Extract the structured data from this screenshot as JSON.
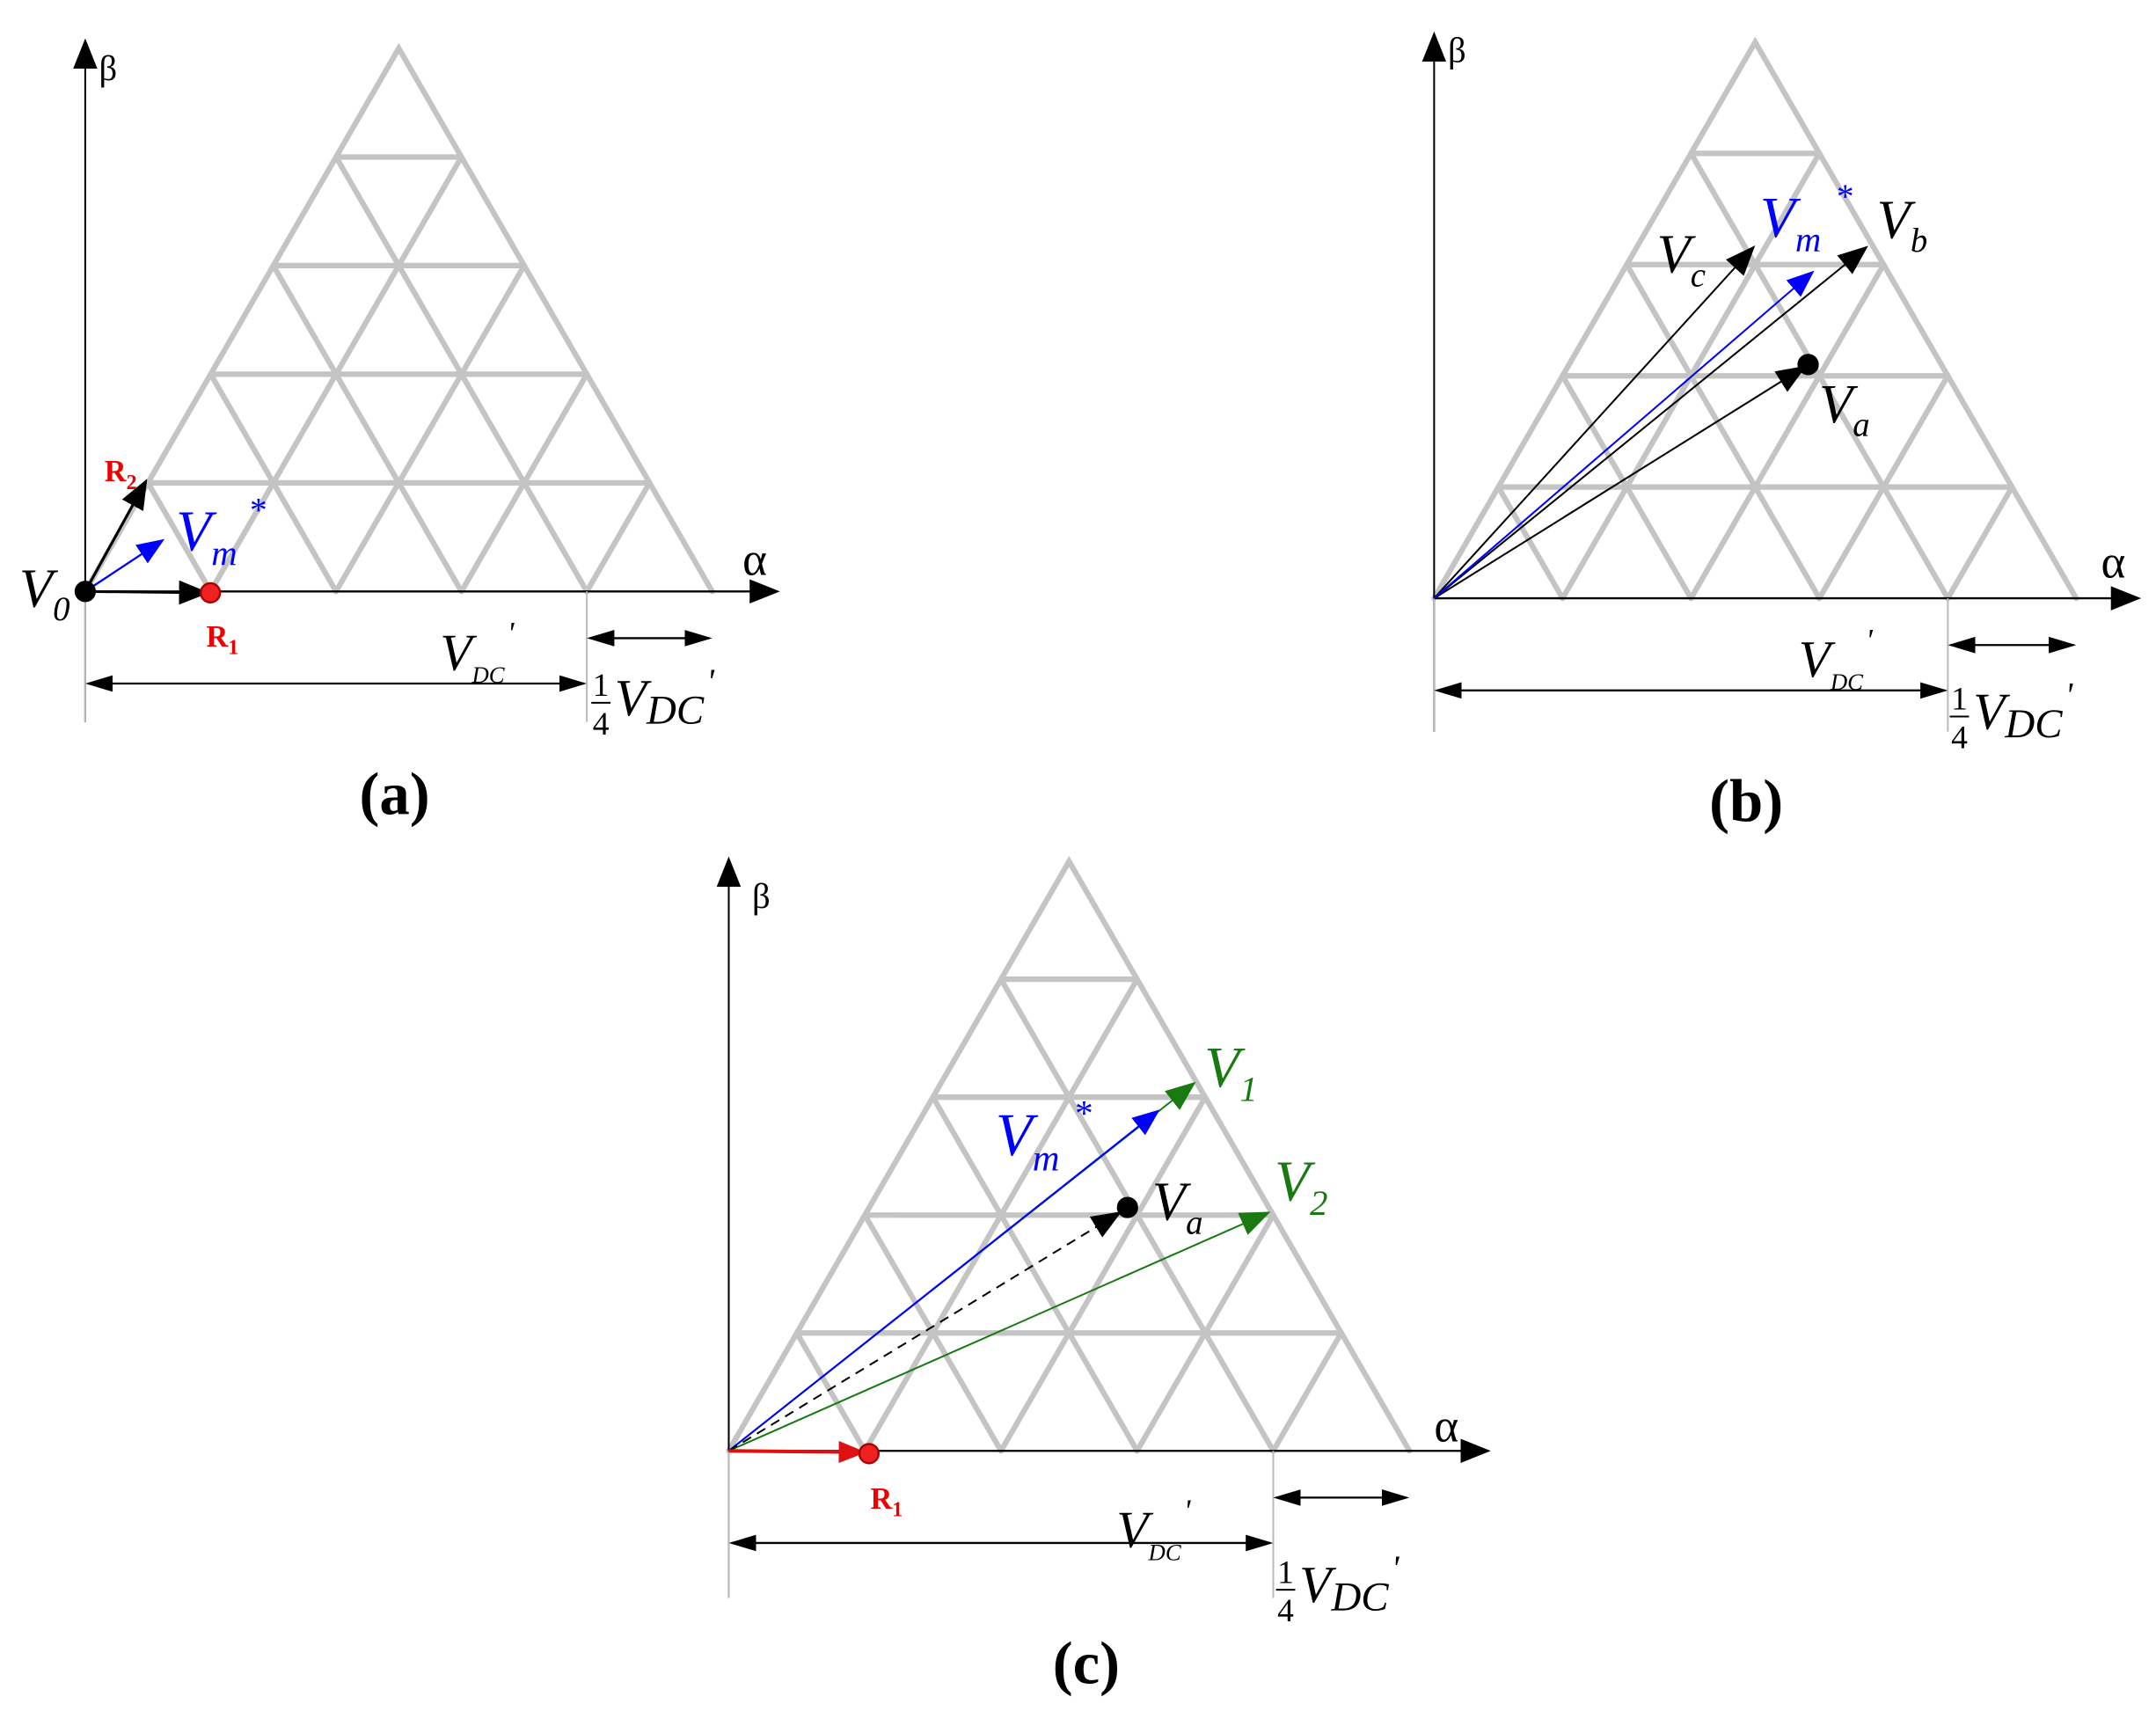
{
  "panels": [
    {
      "caption": "(a)",
      "alpha": "α",
      "beta": "β",
      "dc": {
        "base": "V",
        "sub": "DC",
        "sup": "'"
      },
      "quarter": {
        "num": "1",
        "den": "4",
        "base": "V",
        "sub": "DC",
        "sup": "'"
      },
      "labels": [
        {
          "base": "V",
          "sub": "0"
        },
        {
          "base": "R",
          "sub": "2"
        },
        {
          "base": "R",
          "sub": "1"
        },
        {
          "base": "V",
          "sub": "m",
          "sup": "*"
        }
      ]
    },
    {
      "caption": "(b)",
      "alpha": "α",
      "beta": "β",
      "dc": {
        "base": "V",
        "sub": "DC",
        "sup": "'"
      },
      "quarter": {
        "num": "1",
        "den": "4",
        "base": "V",
        "sub": "DC",
        "sup": "'"
      },
      "labels": [
        {
          "base": "V",
          "sub": "c"
        },
        {
          "base": "V",
          "sub": "b"
        },
        {
          "base": "V",
          "sub": "a"
        },
        {
          "base": "V",
          "sub": "m",
          "sup": "*"
        }
      ]
    },
    {
      "caption": "(c)",
      "alpha": "α",
      "beta": "β",
      "dc": {
        "base": "V",
        "sub": "DC",
        "sup": "'"
      },
      "quarter": {
        "num": "1",
        "den": "4",
        "base": "V",
        "sub": "DC",
        "sup": "'"
      },
      "labels": [
        {
          "base": "V",
          "sub": "1"
        },
        {
          "base": "V",
          "sub": "2"
        },
        {
          "base": "V",
          "sub": "a"
        },
        {
          "base": "V",
          "sub": "m",
          "sup": "*"
        },
        {
          "base": "R",
          "sub": "1"
        }
      ]
    }
  ]
}
